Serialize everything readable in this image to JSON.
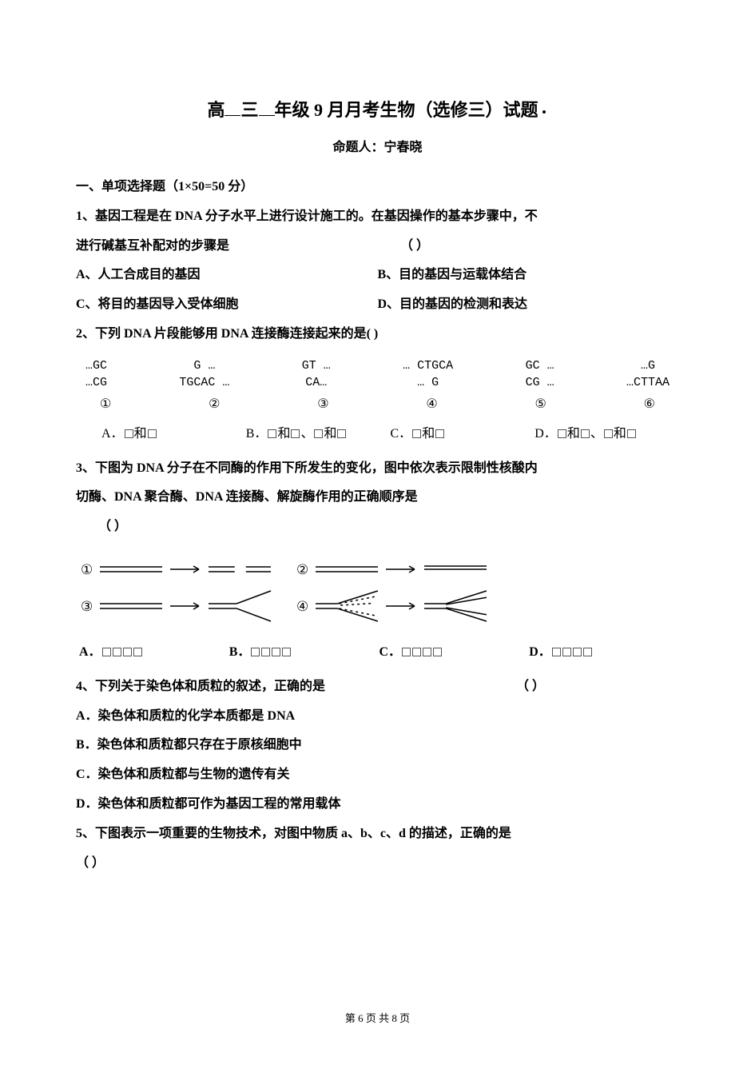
{
  "title": {
    "pre": "高",
    "grade": "三",
    "rest": "年级 9 月月考生物（选修三）试题",
    "fontsize": 22
  },
  "subtitle": "命题人：宁春晓",
  "section_header": "一、单项选择题（1×50=50 分）",
  "q1": {
    "stem_a": "1、基因工程是在 DNA 分子水平上进行设计施工的。在基因操作的基本步骤中，不",
    "stem_b": "进行碱基互补配对的步骤是",
    "paren": "（        ）",
    "optA": "A、人工合成目的基因",
    "optB": "B、目的基因与运载体结合",
    "optC": "C、将目的基因导入受体细胞",
    "optD": "D、目的基因的检测和表达"
  },
  "q2": {
    "stem": "2、下列 DNA 片段能够用 DNA 连接酶连接起来的是(      )",
    "fragments": [
      {
        "top": "…GC",
        "bot": "…CG"
      },
      {
        "top": "G …",
        "bot": "TGCAC …"
      },
      {
        "top": "GT …",
        "bot": "CA…"
      },
      {
        "top": "… CTGCA",
        "bot": "… G"
      },
      {
        "top": "GC …",
        "bot": "CG …"
      },
      {
        "top": "…G",
        "bot": "…CTTAA"
      }
    ],
    "circles": [
      "①",
      "②",
      "③",
      "④",
      "⑤",
      "⑥"
    ],
    "optA_pre": "A．",
    "optA_mid": "和",
    "optB_pre": "B．",
    "optB_mid1": "和",
    "optB_sep": "、",
    "optB_mid2": "和",
    "optC_pre": "C．",
    "optC_mid": "和",
    "optD_pre": "D．",
    "optD_mid1": "和",
    "optD_sep": "、",
    "optD_mid2": "和"
  },
  "q3": {
    "stem_a": "3、下图为 DNA 分子在不同酶的作用下所发生的变化，图中依次表示限制性核酸内",
    "stem_b": "切酶、DNA 聚合酶、DNA 连接酶、解旋酶作用的正确顺序是",
    "paren": "（      ）",
    "diagram": {
      "labels": [
        "①",
        "②",
        "③",
        "④"
      ],
      "stroke": "#000000",
      "stroke_width": 1.5,
      "arrow_len": 36,
      "line_len": 78,
      "gap": 14,
      "fork_spread": 16
    },
    "optA": "A．",
    "optB": "B．",
    "optC": "C．",
    "optD": "D．"
  },
  "q4": {
    "stem": "4、下列关于染色体和质粒的叙述，正确的是",
    "paren": "（      ）",
    "optA": "A．染色体和质粒的化学本质都是 DNA",
    "optB": "B．染色体和质粒都只存在于原核细胞中",
    "optC": "C．染色体和质粒都与生物的遗传有关",
    "optD": "D．染色体和质粒都可作为基因工程的常用载体"
  },
  "q5": {
    "stem": "5、下图表示一项重要的生物技术，对图中物质 a、b、c、d 的描述，正确的是",
    "paren": "（      ）"
  },
  "footer": "第 6 页   共 8 页",
  "colors": {
    "background": "#ffffff",
    "text": "#000000"
  }
}
